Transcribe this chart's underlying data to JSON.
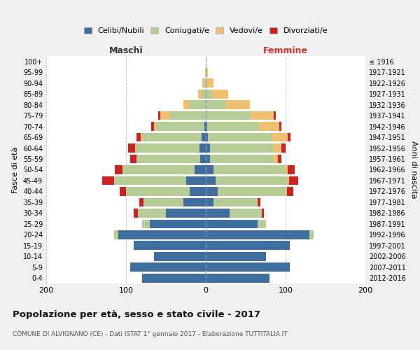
{
  "age_groups": [
    "0-4",
    "5-9",
    "10-14",
    "15-19",
    "20-24",
    "25-29",
    "30-34",
    "35-39",
    "40-44",
    "45-49",
    "50-54",
    "55-59",
    "60-64",
    "65-69",
    "70-74",
    "75-79",
    "80-84",
    "85-89",
    "90-94",
    "95-99",
    "100+"
  ],
  "birth_years": [
    "2012-2016",
    "2007-2011",
    "2002-2006",
    "1997-2001",
    "1992-1996",
    "1987-1991",
    "1982-1986",
    "1977-1981",
    "1972-1976",
    "1967-1971",
    "1962-1966",
    "1957-1961",
    "1952-1956",
    "1947-1951",
    "1942-1946",
    "1937-1941",
    "1932-1936",
    "1927-1931",
    "1922-1926",
    "1917-1921",
    "≤ 1916"
  ],
  "maschi": {
    "celibi": [
      80,
      95,
      65,
      90,
      110,
      70,
      50,
      28,
      20,
      25,
      14,
      7,
      8,
      5,
      2,
      0,
      0,
      0,
      0,
      0,
      0
    ],
    "coniugati": [
      0,
      0,
      0,
      0,
      5,
      10,
      35,
      50,
      80,
      90,
      90,
      80,
      80,
      75,
      60,
      45,
      20,
      5,
      2,
      0,
      0
    ],
    "vedovi": [
      0,
      0,
      0,
      0,
      0,
      0,
      0,
      0,
      0,
      0,
      0,
      0,
      1,
      2,
      3,
      12,
      8,
      5,
      2,
      1,
      0
    ],
    "divorziati": [
      0,
      0,
      0,
      0,
      0,
      0,
      5,
      5,
      8,
      15,
      10,
      8,
      8,
      5,
      3,
      3,
      0,
      0,
      0,
      0,
      0
    ]
  },
  "femmine": {
    "nubili": [
      80,
      105,
      75,
      105,
      130,
      65,
      30,
      10,
      15,
      12,
      10,
      5,
      5,
      3,
      2,
      0,
      0,
      0,
      0,
      0,
      0
    ],
    "coniugate": [
      0,
      0,
      0,
      0,
      5,
      10,
      40,
      55,
      85,
      90,
      90,
      80,
      80,
      80,
      65,
      55,
      25,
      8,
      2,
      0,
      0
    ],
    "vedove": [
      0,
      0,
      0,
      0,
      0,
      0,
      0,
      0,
      2,
      2,
      3,
      5,
      10,
      20,
      25,
      30,
      30,
      20,
      8,
      3,
      1
    ],
    "divorziate": [
      0,
      0,
      0,
      0,
      0,
      0,
      3,
      3,
      8,
      12,
      8,
      5,
      5,
      3,
      3,
      3,
      0,
      0,
      0,
      0,
      0
    ]
  },
  "colors": {
    "celibi": "#3d6e9e",
    "coniugati": "#b5cc96",
    "vedovi": "#f0c070",
    "divorziati": "#cc2222"
  },
  "xlim": 200,
  "title": "Popolazione per età, sesso e stato civile - 2017",
  "subtitle": "COMUNE DI ALVIGNANO (CE) - Dati ISTAT 1° gennaio 2017 - Elaborazione TUTTITALIA.IT",
  "ylabel_left": "Fasce di età",
  "ylabel_right": "Anni di nascita",
  "xlabel_left": "Maschi",
  "xlabel_right": "Femmine",
  "legend_labels": [
    "Celibi/Nubili",
    "Coniugati/e",
    "Vedovi/e",
    "Divorziati/e"
  ],
  "bg_color": "#f0f0f0",
  "plot_bg_color": "#ffffff"
}
